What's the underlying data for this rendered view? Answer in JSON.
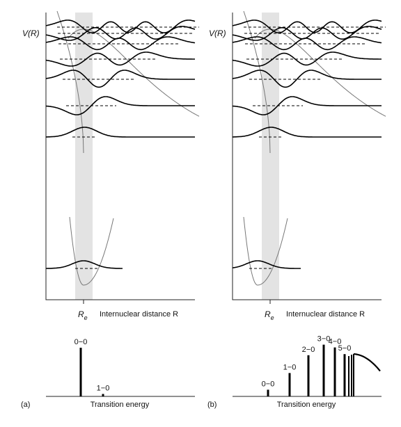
{
  "panels": [
    {
      "id": "a",
      "panel_label": "(a)",
      "potential_label": "V(R)",
      "re_label_main": "R",
      "re_label_sub": "e",
      "xaxis_label": "Internuclear distance R",
      "spectrum_label": "Transition energy",
      "upper_shift": 0,
      "transitions": [
        {
          "label": "0−0",
          "intensity": 1.0
        },
        {
          "label": "1−0",
          "intensity": 0.05
        }
      ],
      "continuum": false
    },
    {
      "id": "b",
      "panel_label": "(b)",
      "potential_label": "V(R)",
      "re_label_main": "R",
      "re_label_sub": "e",
      "xaxis_label": "Internuclear distance R",
      "spectrum_label": "Transition energy",
      "upper_shift": 1,
      "transitions": [
        {
          "label": "0−0",
          "intensity": 0.12
        },
        {
          "label": "1−0",
          "intensity": 0.42
        },
        {
          "label": "2−0",
          "intensity": 0.74
        },
        {
          "label": "3−0",
          "intensity": 0.93
        },
        {
          "label": "4−0",
          "intensity": 0.88
        },
        {
          "label": "5−0",
          "intensity": 0.76
        }
      ],
      "continuum": true
    }
  ],
  "colors": {
    "band": "#e3e3e3",
    "potential": "#777777",
    "ink": "#000000"
  }
}
